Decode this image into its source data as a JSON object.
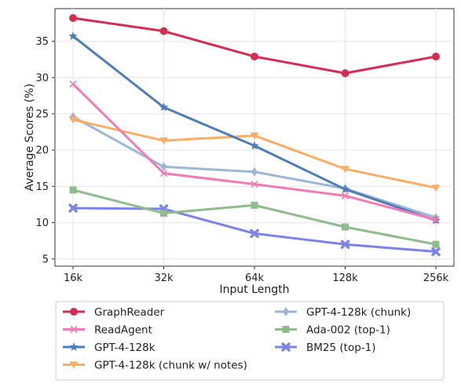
{
  "chart_data": {
    "type": "line",
    "title": "",
    "xlabel": "Input Length",
    "ylabel": "Average Scores (%)",
    "categories": [
      "16k",
      "32k",
      "64k",
      "128k",
      "256k"
    ],
    "yticks": [
      5,
      10,
      15,
      20,
      25,
      30,
      35
    ],
    "ylim": [
      4,
      39.5
    ],
    "grid": true,
    "legend_position": "below",
    "series": [
      {
        "name": "GraphReader",
        "color": "#d62c54",
        "marker": "circle",
        "values": [
          38.2,
          36.4,
          32.9,
          30.6,
          32.9
        ]
      },
      {
        "name": "ReadAgent",
        "color": "#f07bb5",
        "marker": "x",
        "values": [
          29.1,
          16.8,
          15.3,
          13.7,
          10.4
        ]
      },
      {
        "name": "GPT-4-128k",
        "color": "#4e7db8",
        "marker": "star",
        "values": [
          35.7,
          25.9,
          20.6,
          14.6,
          10.3
        ]
      },
      {
        "name": "GPT-4-128k (chunk w/ notes)",
        "color": "#f9ac63",
        "marker": "triangle-down",
        "values": [
          24.2,
          21.3,
          22.0,
          17.4,
          14.8
        ]
      },
      {
        "name": "GPT-4-128k (chunk)",
        "color": "#9db6d6",
        "marker": "diamond",
        "values": [
          24.6,
          17.7,
          17.0,
          14.7,
          10.7
        ]
      },
      {
        "name": "Ada-002 (top-1)",
        "color": "#8fbc8b",
        "marker": "square",
        "values": [
          14.5,
          11.3,
          12.4,
          9.4,
          7.0
        ]
      },
      {
        "name": "BM25 (top-1)",
        "color": "#7b83e8",
        "marker": "x-bold",
        "values": [
          12.0,
          11.9,
          8.5,
          7.0,
          6.0
        ]
      }
    ]
  }
}
